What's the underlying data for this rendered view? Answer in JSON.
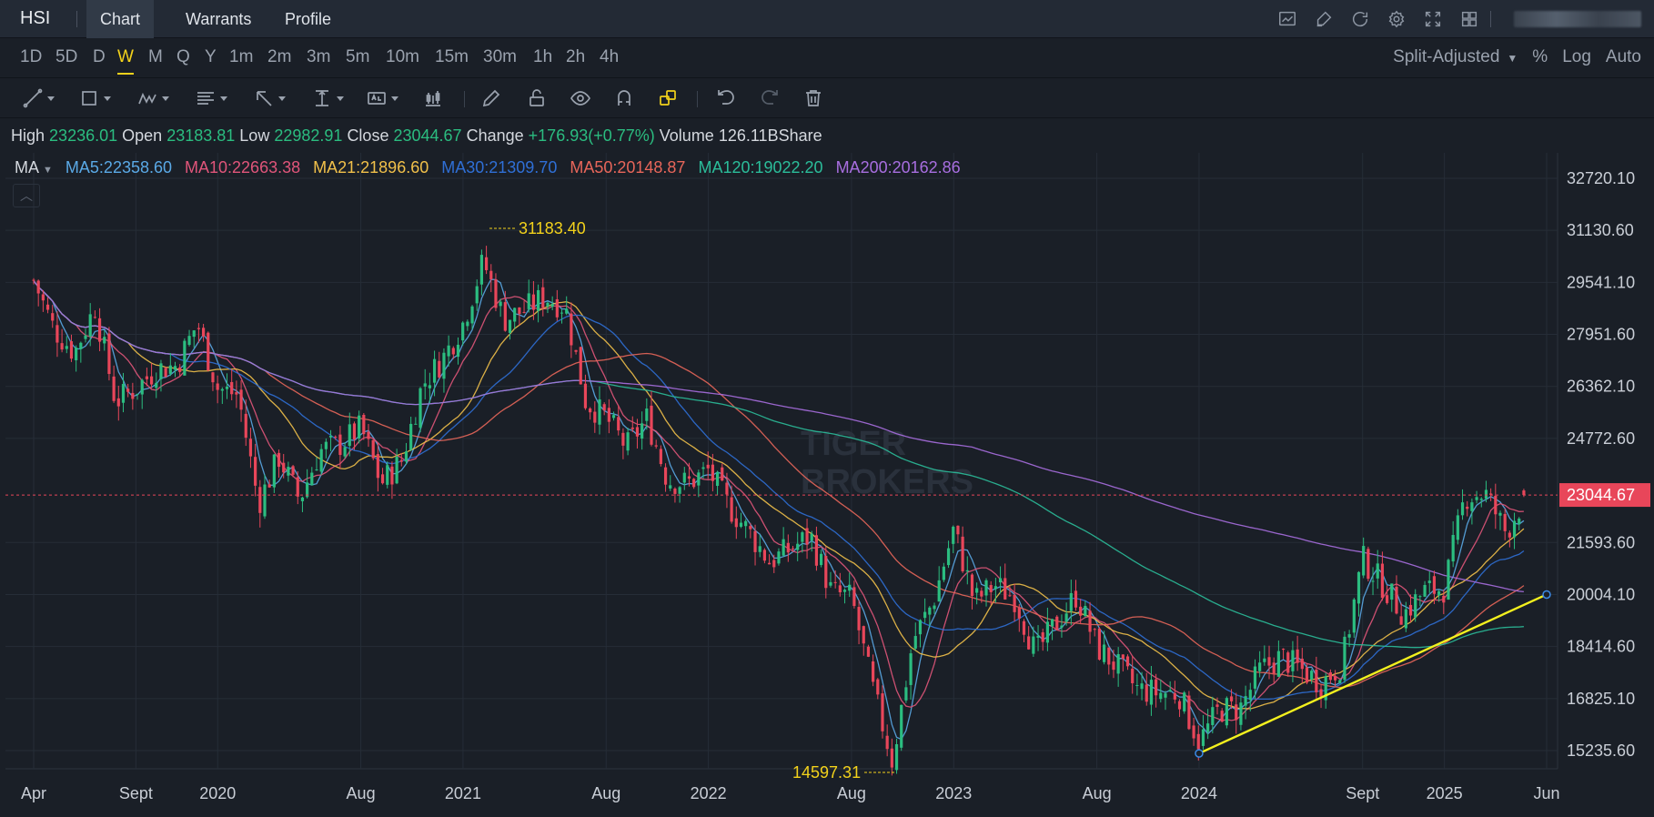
{
  "topbar": {
    "symbol": "HSI",
    "tabs": [
      {
        "label": "Chart",
        "active": true
      },
      {
        "label": "Warrants",
        "active": false
      },
      {
        "label": "Profile",
        "active": false
      }
    ],
    "icons": [
      "chart-type-icon",
      "draw-icon",
      "refresh-icon",
      "settings-icon",
      "fullscreen-icon",
      "layout-icon"
    ]
  },
  "intervals": {
    "items": [
      "1D",
      "5D",
      "D",
      "W",
      "M",
      "Q",
      "Y",
      "1m",
      "2m",
      "3m",
      "5m",
      "10m",
      "15m",
      "30m",
      "1h",
      "2h",
      "4h"
    ],
    "active": "W",
    "adjust": "Split-Adjusted",
    "percent": "%",
    "log": "Log",
    "auto": "Auto"
  },
  "ohlc": {
    "high_label": "High",
    "high": "23236.01",
    "open_label": "Open",
    "open": "23183.81",
    "low_label": "Low",
    "low": "22982.91",
    "close_label": "Close",
    "close": "23044.67",
    "change_label": "Change",
    "change": "+176.93(+0.77%)",
    "volume_label": "Volume",
    "volume": "126.11BShare"
  },
  "ma": {
    "label": "MA",
    "items": [
      {
        "text": "MA5:22358.60",
        "color": "#5aa9e6"
      },
      {
        "text": "MA10:22663.38",
        "color": "#e0557a"
      },
      {
        "text": "MA21:21896.60",
        "color": "#f1c04a"
      },
      {
        "text": "MA30:21309.70",
        "color": "#2f6fd6"
      },
      {
        "text": "MA50:20148.87",
        "color": "#e8665a"
      },
      {
        "text": "MA120:19022.20",
        "color": "#2bbd9a"
      },
      {
        "text": "MA200:20162.86",
        "color": "#a86ee0"
      }
    ]
  },
  "chart_data": {
    "type": "candlestick",
    "symbol": "HSI",
    "interval": "W",
    "y_ticks": [
      "32720.10",
      "31130.60",
      "29541.10",
      "27951.60",
      "26362.10",
      "24772.60",
      "23044.67",
      "21593.60",
      "20004.10",
      "18414.60",
      "16825.10",
      "15235.60"
    ],
    "x_ticks": [
      "Apr",
      "Sept",
      "2020",
      "Aug",
      "2021",
      "Aug",
      "2022",
      "Aug",
      "2023",
      "Aug",
      "2024",
      "Sept",
      "2025",
      "Jun"
    ],
    "ylim": [
      14500,
      33200
    ],
    "last_price": "23044.67",
    "annotations": {
      "high": "31183.40",
      "low": "14597.31"
    },
    "close_path": [
      [
        "2019-04",
        29600
      ],
      [
        "2019-05",
        28100
      ],
      [
        "2019-06",
        27400
      ],
      [
        "2019-07",
        28800
      ],
      [
        "2019-08",
        25900
      ],
      [
        "2019-09",
        26300
      ],
      [
        "2019-10",
        26900
      ],
      [
        "2019-11",
        27000
      ],
      [
        "2019-12",
        28300
      ],
      [
        "2020-01",
        26300
      ],
      [
        "2020-02",
        26100
      ],
      [
        "2020-03",
        22800
      ],
      [
        "2020-04",
        24200
      ],
      [
        "2020-05",
        22900
      ],
      [
        "2020-06",
        24400
      ],
      [
        "2020-07",
        24600
      ],
      [
        "2020-08",
        25100
      ],
      [
        "2020-09",
        23400
      ],
      [
        "2020-10",
        24100
      ],
      [
        "2020-11",
        26400
      ],
      [
        "2020-12",
        27200
      ],
      [
        "2021-01",
        28300
      ],
      [
        "2021-02",
        30200
      ],
      [
        "2021-03",
        28400
      ],
      [
        "2021-04",
        28700
      ],
      [
        "2021-05",
        29100
      ],
      [
        "2021-06",
        28800
      ],
      [
        "2021-07",
        25900
      ],
      [
        "2021-08",
        25400
      ],
      [
        "2021-09",
        24500
      ],
      [
        "2021-10",
        25400
      ],
      [
        "2021-11",
        23500
      ],
      [
        "2021-12",
        23400
      ],
      [
        "2022-01",
        23800
      ],
      [
        "2022-02",
        22700
      ],
      [
        "2022-03",
        21900
      ],
      [
        "2022-04",
        21000
      ],
      [
        "2022-05",
        21400
      ],
      [
        "2022-06",
        21800
      ],
      [
        "2022-07",
        20100
      ],
      [
        "2022-08",
        19900
      ],
      [
        "2022-09",
        17200
      ],
      [
        "2022-10",
        14900
      ],
      [
        "2022-11",
        18600
      ],
      [
        "2022-12",
        19800
      ],
      [
        "2023-01",
        22000
      ],
      [
        "2023-02",
        19800
      ],
      [
        "2023-03",
        20300
      ],
      [
        "2023-04",
        19900
      ],
      [
        "2023-05",
        18200
      ],
      [
        "2023-06",
        19100
      ],
      [
        "2023-07",
        20000
      ],
      [
        "2023-08",
        18400
      ],
      [
        "2023-09",
        17800
      ],
      [
        "2023-10",
        17100
      ],
      [
        "2023-11",
        17000
      ],
      [
        "2023-12",
        17000
      ],
      [
        "2024-01",
        15500
      ],
      [
        "2024-02",
        16500
      ],
      [
        "2024-03",
        16500
      ],
      [
        "2024-04",
        17700
      ],
      [
        "2024-05",
        18100
      ],
      [
        "2024-06",
        17700
      ],
      [
        "2024-07",
        17300
      ],
      [
        "2024-08",
        17900
      ],
      [
        "2024-09",
        21100
      ],
      [
        "2024-10",
        20300
      ],
      [
        "2024-11",
        19400
      ],
      [
        "2024-12",
        20100
      ],
      [
        "2025-01",
        20200
      ],
      [
        "2025-02",
        23000
      ],
      [
        "2025-03",
        23100
      ],
      [
        "2025-04",
        21900
      ],
      [
        "2025-05",
        23044.67
      ]
    ],
    "trendline": {
      "from": [
        "2024-01",
        15150
      ],
      "to": [
        "2025-06",
        20004.1
      ],
      "color": "#f3f01e"
    }
  },
  "watermark": {
    "line1": "TIGER",
    "line2": "BROKERS"
  }
}
